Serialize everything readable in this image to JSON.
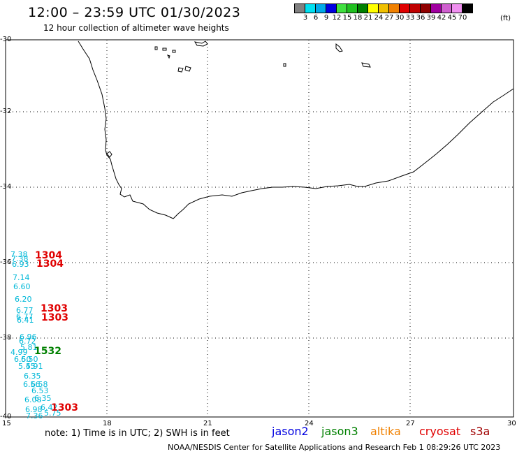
{
  "header": {
    "title": "12:00 – 23:59 UTC 01/30/2023",
    "subtitle": "12 hour collection of altimeter wave heights"
  },
  "legend": {
    "colors": [
      "#808080",
      "#00e0f0",
      "#00a8e8",
      "#0000e0",
      "#40e040",
      "#20c020",
      "#008000",
      "#ffff00",
      "#f0c000",
      "#f08000",
      "#e00000",
      "#c00000",
      "#900000",
      "#a000a0",
      "#d060d0",
      "#f090f0",
      "#000000"
    ],
    "ticks": [
      "3",
      "6",
      "9",
      "12",
      "15",
      "18",
      "21",
      "24",
      "27",
      "30",
      "33",
      "36",
      "39",
      "42",
      "45",
      "70"
    ],
    "unit": "(ft)"
  },
  "axes": {
    "lat_labels": [
      "-30",
      "-32",
      "-34",
      "-36",
      "-38",
      "-40"
    ],
    "lon_labels": [
      "15",
      "18",
      "21",
      "24",
      "27",
      "30"
    ]
  },
  "wave_heights": [
    "7.38",
    "7.38",
    "6.93",
    "7.14",
    "6.60",
    "6.20",
    "6.77",
    "6.77",
    "6.41",
    "6.96",
    "6.72",
    "5.81",
    "4.99",
    "6.50",
    "6.50",
    "5.45",
    "5.91",
    "6.35",
    "6.56",
    "6.58",
    "6.53",
    "6.08",
    "6.35",
    "6.42",
    "6.98",
    "5.75",
    "7.36"
  ],
  "orbit_times": [
    {
      "label": "1304",
      "color": "#e00000"
    },
    {
      "label": "1304",
      "color": "#e00000"
    },
    {
      "label": "1303",
      "color": "#e00000"
    },
    {
      "label": "1303",
      "color": "#e00000"
    },
    {
      "label": "1532",
      "color": "#008000"
    },
    {
      "label": "1303",
      "color": "#e00000"
    }
  ],
  "footer": {
    "note": "note:  1) Time is in UTC;  2) SWH is in feet",
    "satellites": [
      {
        "name": "jason2",
        "color": "#0000e0"
      },
      {
        "name": "jason3",
        "color": "#008000"
      },
      {
        "name": "altika",
        "color": "#f08000"
      },
      {
        "name": "cryosat",
        "color": "#e00000"
      },
      {
        "name": "s3a",
        "color": "#a00000"
      }
    ],
    "credit": "NOAA/NESDIS Center for Satellite Applications and Research    Feb  1 08:29:26 UTC 2023"
  }
}
